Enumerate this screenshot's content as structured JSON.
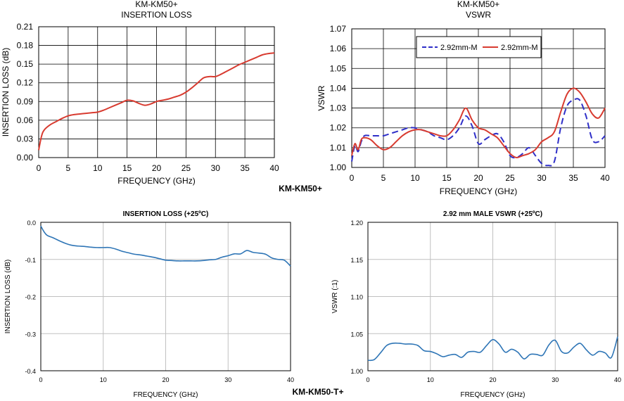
{
  "page": {
    "label_top": "KM-KM50+",
    "label_bottom": "KM-KM50-T+"
  },
  "chart_data": [
    {
      "type": "line",
      "title": "KM-KM50+",
      "subtitle": "INSERTION LOSS",
      "xlabel": "FREQUENCY (GHz)",
      "ylabel": "INSERTION LOSS (dB)",
      "xlim": [
        0,
        40
      ],
      "ylim": [
        0,
        0.21
      ],
      "xticks": [
        "0",
        "5",
        "10",
        "15",
        "20",
        "25",
        "30",
        "35",
        "40"
      ],
      "yticks": [
        "0.00",
        "0.03",
        "0.06",
        "0.09",
        "0.12",
        "0.15",
        "0.18",
        "0.21"
      ],
      "grid": true,
      "series": [
        {
          "color": "#d83b30",
          "x": [
            0,
            0.5,
            1,
            2,
            3,
            4,
            5,
            6,
            7,
            8,
            9,
            10,
            11,
            12,
            13,
            14,
            15,
            16,
            17,
            18,
            19,
            20,
            21,
            22,
            23,
            24,
            25,
            26,
            27,
            28,
            29,
            30,
            31,
            32,
            33,
            34,
            35,
            36,
            37,
            38,
            39,
            40
          ],
          "y": [
            0.012,
            0.035,
            0.045,
            0.053,
            0.058,
            0.063,
            0.067,
            0.069,
            0.07,
            0.071,
            0.072,
            0.073,
            0.076,
            0.08,
            0.084,
            0.088,
            0.092,
            0.091,
            0.087,
            0.084,
            0.086,
            0.09,
            0.092,
            0.094,
            0.097,
            0.1,
            0.105,
            0.112,
            0.12,
            0.128,
            0.13,
            0.13,
            0.134,
            0.139,
            0.144,
            0.149,
            0.153,
            0.157,
            0.161,
            0.165,
            0.167,
            0.168
          ]
        }
      ]
    },
    {
      "type": "line",
      "title": "KM-KM50+",
      "subtitle": "VSWR",
      "xlabel": "FREQUENCY (GHz)",
      "ylabel": "VSWR",
      "xlim": [
        0,
        40
      ],
      "ylim": [
        1.0,
        1.07
      ],
      "xticks": [
        "0",
        "5",
        "10",
        "15",
        "20",
        "25",
        "30",
        "35",
        "40"
      ],
      "yticks": [
        "1.00",
        "1.01",
        "1.02",
        "1.03",
        "1.04",
        "1.05",
        "1.06",
        "1.07"
      ],
      "grid": true,
      "legend": "top-center",
      "series": [
        {
          "name": "2.92mm-M",
          "color": "#2f2fc8",
          "dash": true,
          "x": [
            0,
            0.5,
            1,
            1.5,
            2,
            3,
            4,
            5,
            6,
            7,
            8,
            9,
            10,
            11,
            12,
            13,
            14,
            15,
            16,
            17,
            18,
            19,
            20,
            21,
            22,
            23,
            24,
            25,
            26,
            27,
            28,
            29,
            30,
            31,
            32,
            33,
            34,
            35,
            36,
            37,
            38,
            39,
            40
          ],
          "y": [
            1.003,
            1.011,
            1.008,
            1.013,
            1.016,
            1.016,
            1.016,
            1.016,
            1.017,
            1.018,
            1.019,
            1.02,
            1.02,
            1.019,
            1.018,
            1.016,
            1.015,
            1.014,
            1.016,
            1.02,
            1.026,
            1.021,
            1.012,
            1.014,
            1.016,
            1.017,
            1.013,
            1.006,
            1.005,
            1.007,
            1.01,
            1.006,
            1.002,
            1.001,
            1.003,
            1.02,
            1.031,
            1.034,
            1.034,
            1.026,
            1.014,
            1.013,
            1.016
          ]
        },
        {
          "name": "2.92mm-M",
          "color": "#d83b30",
          "dash": false,
          "x": [
            0,
            0.5,
            1,
            1.5,
            2,
            3,
            4,
            5,
            6,
            7,
            8,
            9,
            10,
            11,
            12,
            13,
            14,
            15,
            16,
            17,
            18,
            19,
            20,
            21,
            22,
            23,
            24,
            25,
            26,
            27,
            28,
            29,
            30,
            31,
            32,
            33,
            34,
            35,
            36,
            37,
            38,
            39,
            40
          ],
          "y": [
            1.006,
            1.012,
            1.009,
            1.014,
            1.015,
            1.014,
            1.011,
            1.009,
            1.01,
            1.013,
            1.016,
            1.018,
            1.019,
            1.019,
            1.018,
            1.017,
            1.016,
            1.016,
            1.019,
            1.024,
            1.03,
            1.024,
            1.02,
            1.019,
            1.017,
            1.015,
            1.011,
            1.007,
            1.005,
            1.006,
            1.007,
            1.009,
            1.013,
            1.015,
            1.018,
            1.028,
            1.037,
            1.04,
            1.038,
            1.033,
            1.027,
            1.025,
            1.03
          ]
        }
      ]
    },
    {
      "type": "line",
      "title": "INSERTION LOSS (+25ºC)",
      "xlabel": "FREQUENCY  (GHz)",
      "ylabel": "INSERTION LOSS (dB)",
      "xlim": [
        0,
        40
      ],
      "ylim": [
        -0.4,
        0.0
      ],
      "xticks": [
        "0",
        "10",
        "20",
        "30",
        "40"
      ],
      "yticks": [
        "-0.4",
        "-0.3",
        "-0.2",
        "-0.1",
        "0.0"
      ],
      "grid": true,
      "series": [
        {
          "color": "#2e75b6",
          "x": [
            0,
            0.5,
            1,
            2,
            3,
            4,
            5,
            6,
            7,
            8,
            9,
            10,
            11,
            12,
            13,
            14,
            15,
            16,
            17,
            18,
            19,
            20,
            21,
            22,
            23,
            24,
            25,
            26,
            27,
            28,
            29,
            30,
            31,
            32,
            33,
            34,
            35,
            36,
            37,
            38,
            39,
            40
          ],
          "y": [
            -0.01,
            -0.025,
            -0.035,
            -0.042,
            -0.05,
            -0.057,
            -0.062,
            -0.064,
            -0.065,
            -0.067,
            -0.068,
            -0.068,
            -0.068,
            -0.072,
            -0.078,
            -0.082,
            -0.086,
            -0.088,
            -0.091,
            -0.094,
            -0.098,
            -0.102,
            -0.103,
            -0.104,
            -0.104,
            -0.104,
            -0.104,
            -0.103,
            -0.101,
            -0.1,
            -0.094,
            -0.09,
            -0.085,
            -0.085,
            -0.076,
            -0.081,
            -0.083,
            -0.086,
            -0.096,
            -0.1,
            -0.102,
            -0.118
          ]
        }
      ]
    },
    {
      "type": "line",
      "title": "2.92 mm MALE VSWR (+25ºC)",
      "xlabel": "FREQUENCY  (GHz)",
      "ylabel": "VSWR (:1)",
      "xlim": [
        0,
        40
      ],
      "ylim": [
        1.0,
        1.2
      ],
      "xticks": [
        "0",
        "10",
        "20",
        "30",
        "40"
      ],
      "yticks": [
        "1.00",
        "1.05",
        "1.10",
        "1.15",
        "1.20"
      ],
      "grid": true,
      "series": [
        {
          "color": "#2e75b6",
          "x": [
            0,
            1,
            2,
            3,
            4,
            5,
            6,
            7,
            8,
            9,
            10,
            11,
            12,
            13,
            14,
            15,
            16,
            17,
            18,
            19,
            20,
            21,
            22,
            23,
            24,
            25,
            26,
            27,
            28,
            29,
            30,
            31,
            32,
            33,
            34,
            35,
            36,
            37,
            38,
            39,
            40
          ],
          "y": [
            1.014,
            1.015,
            1.024,
            1.034,
            1.037,
            1.037,
            1.036,
            1.036,
            1.034,
            1.027,
            1.026,
            1.023,
            1.019,
            1.021,
            1.022,
            1.018,
            1.025,
            1.026,
            1.025,
            1.034,
            1.042,
            1.036,
            1.025,
            1.029,
            1.025,
            1.016,
            1.022,
            1.022,
            1.021,
            1.035,
            1.041,
            1.026,
            1.024,
            1.032,
            1.037,
            1.028,
            1.021,
            1.026,
            1.024,
            1.018,
            1.046
          ]
        }
      ]
    }
  ]
}
